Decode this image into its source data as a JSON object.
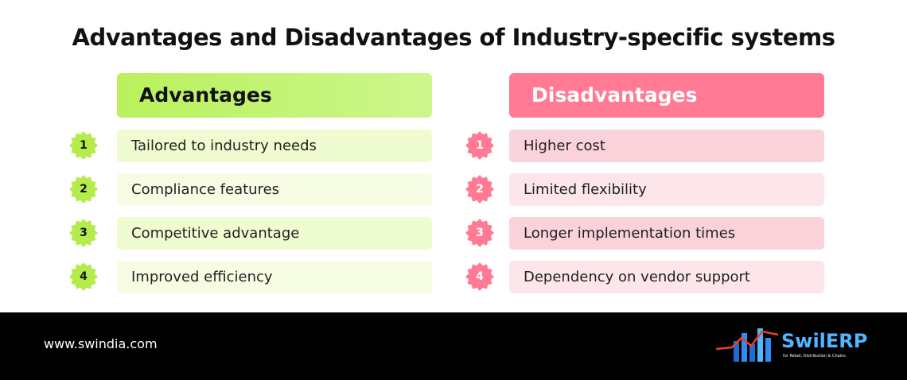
{
  "title": "Advantages and Disadvantages of Industry-specific systems",
  "advantages": {
    "heading": "Advantages",
    "items": [
      {
        "number": "1",
        "text": "Tailored to industry needs"
      },
      {
        "number": "2",
        "text": "Compliance features"
      },
      {
        "number": "3",
        "text": "Competitive advantage"
      },
      {
        "number": "4",
        "text": "Improved efficiency"
      }
    ]
  },
  "disadvantages": {
    "heading": "Disadvantages",
    "items": [
      {
        "number": "1",
        "text": "Higher cost"
      },
      {
        "number": "2",
        "text": "Limited flexibility"
      },
      {
        "number": "3",
        "text": "Longer implementation times"
      },
      {
        "number": "4",
        "text": "Dependency on vendor support"
      }
    ]
  },
  "footer": {
    "url": "www.swindia.com",
    "brand": "SwilERP",
    "tagline": "for Retail, Distribution & Chains"
  }
}
